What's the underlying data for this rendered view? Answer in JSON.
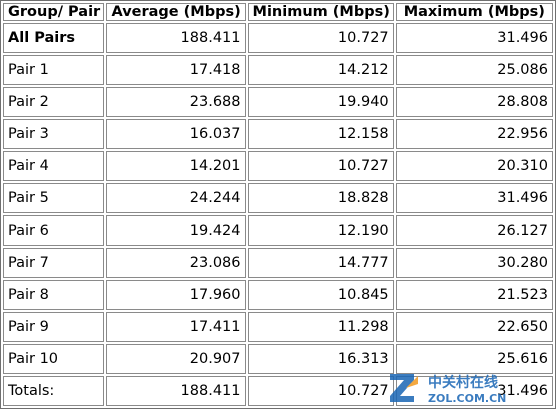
{
  "table": {
    "headers": [
      "Group/ Pair",
      "Average (Mbps)",
      "Minimum (Mbps)",
      "Maximum (Mbps)"
    ],
    "rows": [
      [
        "All Pairs",
        "188.411",
        "10.727",
        "31.496"
      ],
      [
        "Pair 1",
        "17.418",
        "14.212",
        "25.086"
      ],
      [
        "Pair 2",
        "23.688",
        "19.940",
        "28.808"
      ],
      [
        "Pair 3",
        "16.037",
        "12.158",
        "22.956"
      ],
      [
        "Pair 4",
        "14.201",
        "10.727",
        "20.310"
      ],
      [
        "Pair 5",
        "24.244",
        "18.828",
        "31.496"
      ],
      [
        "Pair 6",
        "19.424",
        "12.190",
        "26.127"
      ],
      [
        "Pair 7",
        "23.086",
        "14.777",
        "30.280"
      ],
      [
        "Pair 8",
        "17.960",
        "10.845",
        "21.523"
      ],
      [
        "Pair 9",
        "17.411",
        "11.298",
        "22.650"
      ],
      [
        "Pair 10",
        "20.907",
        "16.313",
        "25.616"
      ],
      [
        "Totals:",
        "188.411",
        "10.727",
        "31.496"
      ]
    ]
  },
  "watermark": {
    "text_cn": "中关村在线",
    "text_en": "ZOL.COM.CN",
    "color": "#1a66b5"
  }
}
